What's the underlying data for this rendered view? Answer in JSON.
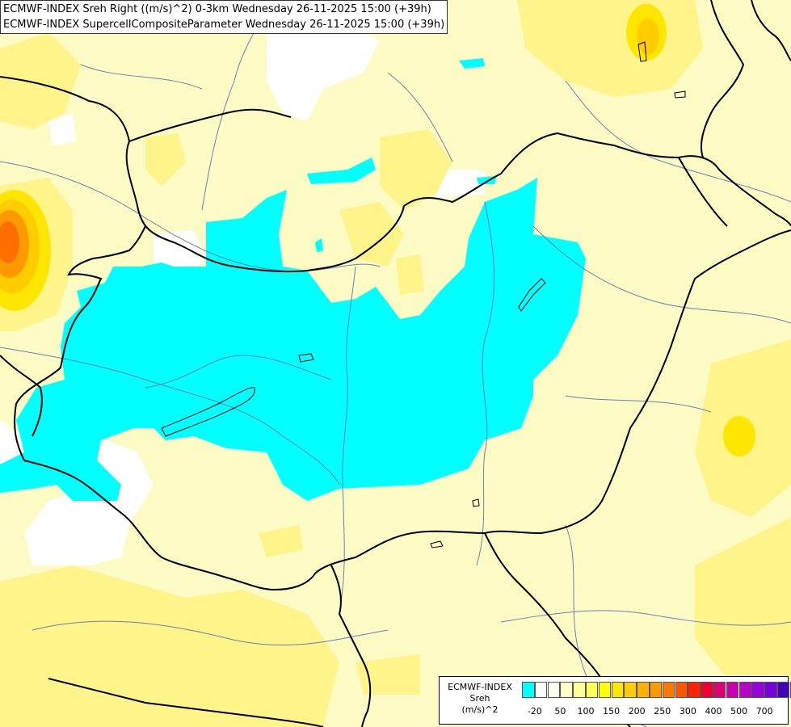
{
  "header": {
    "line1": "ECMWF-INDEX Sreh Right ((m/s)^2) 0-3km Wednesday 26-11-2025 15:00 (+39h)",
    "line2": "ECMWF-INDEX SupercellCompositeParameter Wednesday 26-11-2025 15:00 (+39h)"
  },
  "legend": {
    "title1": "ECMWF-INDEX",
    "title2": "Sreh",
    "title3": "(m/s)^2",
    "colors": [
      "#00ffff",
      "#ffffff",
      "#fffff0",
      "#ffffc8",
      "#ffff99",
      "#ffff55",
      "#ffff00",
      "#ffe600",
      "#ffcc00",
      "#ffb300",
      "#ff9900",
      "#ff7700",
      "#ff5500",
      "#ff2200",
      "#ee0033",
      "#dd0077",
      "#cc00aa",
      "#bb00cc",
      "#9900dd",
      "#7700dd",
      "#4400bb",
      "#110077"
    ],
    "ticks": [
      "-20",
      "50",
      "100",
      "150",
      "200",
      "250",
      "300",
      "400",
      "500",
      "700"
    ]
  },
  "palette": {
    "cyan": "#00ffff",
    "pale_yellow": "#fdfbc4",
    "yellow": "#fff48a",
    "white": "#ffffff",
    "orange": "#ffb300",
    "red_orange": "#ff6f00",
    "border_line": "#000000",
    "river_line": "#6a7fb5"
  }
}
